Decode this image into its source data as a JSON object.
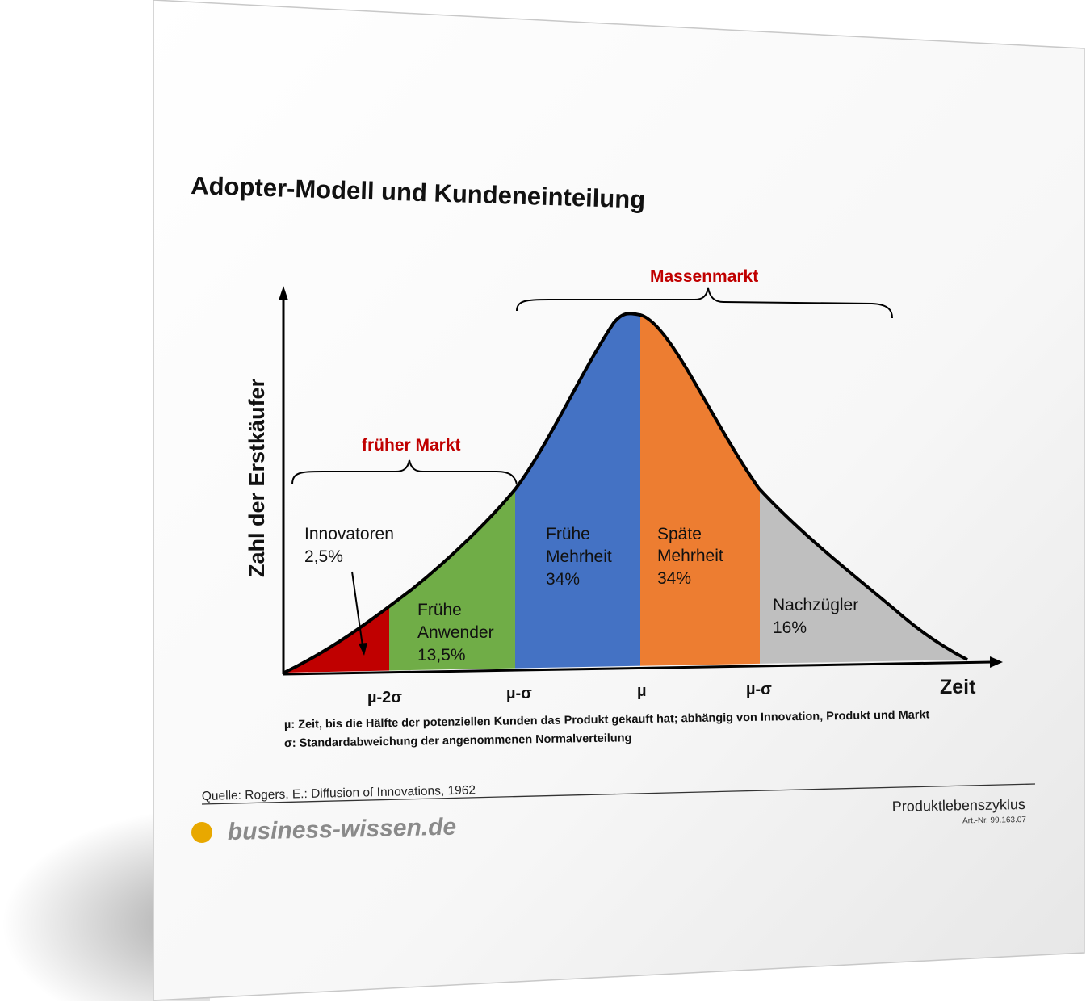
{
  "title": "Adopter-Modell und Kundeneinteilung",
  "y_axis_label": "Zahl der Erstkäufer",
  "x_axis_label": "Zeit",
  "groups": {
    "massenmarkt": "Massenmarkt",
    "frueher_markt": "früher Markt"
  },
  "segments": [
    {
      "name_lines": [
        "Innovatoren",
        "2,5%"
      ],
      "color": "#c00000"
    },
    {
      "name_lines": [
        "Frühe",
        "Anwender",
        "13,5%"
      ],
      "color": "#70ad47"
    },
    {
      "name_lines": [
        "Frühe",
        "Mehrheit",
        "34%"
      ],
      "color": "#4472c4"
    },
    {
      "name_lines": [
        "Späte",
        "Mehrheit",
        "34%"
      ],
      "color": "#ed7d31"
    },
    {
      "name_lines": [
        "Nachzügler",
        "16%"
      ],
      "color": "#bfbfbf"
    }
  ],
  "ticks": [
    "µ-2σ",
    "µ-σ",
    "µ",
    "µ-σ"
  ],
  "notes": [
    "µ: Zeit, bis die Hälfte der potenziellen Kunden das Produkt gekauft hat; abhängig von Innovation, Produkt und Markt",
    "σ: Standardabweichung der angenommenen Normalverteilung"
  ],
  "source": "Quelle: Rogers, E.: Diffusion of Innovations, 1962",
  "category": "Produktlebenszyklus",
  "article_number": "Art.-Nr. 99.163.07",
  "brand": "business-wissen.de",
  "colors": {
    "accent_red": "#c00000",
    "brand_dot": "#e8a800",
    "brand_text": "#8a8a8a"
  }
}
